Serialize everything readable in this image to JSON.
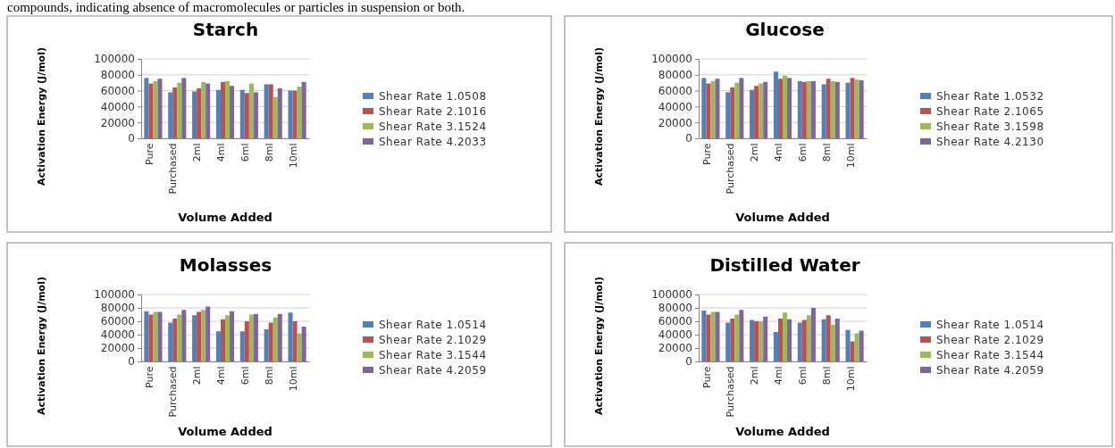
{
  "chart_data": [
    {
      "type": "bar",
      "title": "Starch",
      "xlabel": "Volume Added",
      "ylabel": "Activation Energy (J/mol)",
      "annotations": [
        "compounds, indicating absence of macromolecules or particles in suspension or both."
      ],
      "categories": [
        "Pure",
        "Purchased",
        "2ml",
        "4ml",
        "6ml",
        "8ml",
        "10ml"
      ],
      "ylim": [
        0,
        100000
      ],
      "yticks": [
        0,
        20000,
        40000,
        60000,
        80000,
        100000
      ],
      "grid": "y",
      "legend": "right",
      "series": [
        {
          "name": "Shear Rate 1.0508",
          "color": "#4f81bd",
          "values": [
            76000,
            58000,
            59000,
            61000,
            61000,
            68000,
            60000
          ]
        },
        {
          "name": "Shear Rate 2.1016",
          "color": "#c0504d",
          "values": [
            69000,
            64000,
            63000,
            71000,
            57000,
            68000,
            60000
          ]
        },
        {
          "name": "Shear Rate 3.1524",
          "color": "#9bbb59",
          "values": [
            72000,
            70000,
            71000,
            72000,
            69000,
            52000,
            65000
          ]
        },
        {
          "name": "Shear Rate 4.2033",
          "color": "#8064a2",
          "values": [
            75000,
            76000,
            69000,
            66000,
            58000,
            63000,
            71000
          ]
        }
      ]
    },
    {
      "type": "bar",
      "title": "Glucose",
      "xlabel": "Volume Added",
      "ylabel": "Activation Energy (J/mol)",
      "categories": [
        "Pure",
        "Purchased",
        "2ml",
        "4ml",
        "6ml",
        "8ml",
        "10ml"
      ],
      "ylim": [
        0,
        100000
      ],
      "yticks": [
        0,
        20000,
        40000,
        60000,
        80000,
        100000
      ],
      "grid": "y",
      "legend": "right",
      "series": [
        {
          "name": "Shear Rate 1.0532",
          "color": "#4f81bd",
          "values": [
            76000,
            58000,
            61000,
            84000,
            72000,
            68000,
            70000
          ]
        },
        {
          "name": "Shear Rate 2.1065",
          "color": "#c0504d",
          "values": [
            69000,
            64000,
            66000,
            75000,
            71000,
            75000,
            76000
          ]
        },
        {
          "name": "Shear Rate 3.1598",
          "color": "#9bbb59",
          "values": [
            72000,
            70000,
            69000,
            79000,
            72000,
            72000,
            74000
          ]
        },
        {
          "name": "Shear Rate 4.2130",
          "color": "#8064a2",
          "values": [
            75000,
            76000,
            71000,
            76000,
            72000,
            71000,
            73000
          ]
        }
      ]
    },
    {
      "type": "bar",
      "title": "Molasses",
      "xlabel": "Volume Added",
      "ylabel": "Activation Energy (J/mol)",
      "categories": [
        "Pure",
        "Purchased",
        "2ml",
        "4ml",
        "6ml",
        "8ml",
        "10ml"
      ],
      "ylim": [
        0,
        100000
      ],
      "yticks": [
        0,
        20000,
        40000,
        60000,
        80000,
        100000
      ],
      "grid": "y",
      "legend": "right",
      "series": [
        {
          "name": "Shear Rate 1.0514",
          "color": "#4f81bd",
          "values": [
            75000,
            58000,
            69000,
            45000,
            45000,
            48000,
            73000
          ]
        },
        {
          "name": "Shear Rate 2.1029",
          "color": "#c0504d",
          "values": [
            70000,
            64000,
            74000,
            63000,
            60000,
            58000,
            60000
          ]
        },
        {
          "name": "Shear Rate 3.1544",
          "color": "#9bbb59",
          "values": [
            74000,
            70000,
            77000,
            69000,
            70000,
            66000,
            42000
          ]
        },
        {
          "name": "Shear Rate 4.2059",
          "color": "#8064a2",
          "values": [
            74000,
            77000,
            82000,
            75000,
            71000,
            71000,
            52000
          ]
        }
      ]
    },
    {
      "type": "bar",
      "title": "Distilled Water",
      "xlabel": "Volume Added",
      "ylabel": "Activation Energy (J/mol)",
      "categories": [
        "Pure",
        "Purchased",
        "2ml",
        "4ml",
        "6ml",
        "8ml",
        "10ml"
      ],
      "ylim": [
        0,
        100000
      ],
      "yticks": [
        0,
        20000,
        40000,
        60000,
        80000,
        100000
      ],
      "grid": "y",
      "legend": "right",
      "series": [
        {
          "name": "Shear Rate 1.0514",
          "color": "#4f81bd",
          "values": [
            76000,
            58000,
            62000,
            44000,
            58000,
            63000,
            47000
          ]
        },
        {
          "name": "Shear Rate 2.1029",
          "color": "#c0504d",
          "values": [
            70000,
            64000,
            60000,
            64000,
            62000,
            69000,
            30000
          ]
        },
        {
          "name": "Shear Rate 3.1544",
          "color": "#9bbb59",
          "values": [
            74000,
            70000,
            60000,
            73000,
            69000,
            55000,
            42000
          ]
        },
        {
          "name": "Shear Rate 4.2059",
          "color": "#8064a2",
          "values": [
            74000,
            77000,
            67000,
            63000,
            80000,
            64000,
            46000
          ]
        }
      ]
    }
  ]
}
